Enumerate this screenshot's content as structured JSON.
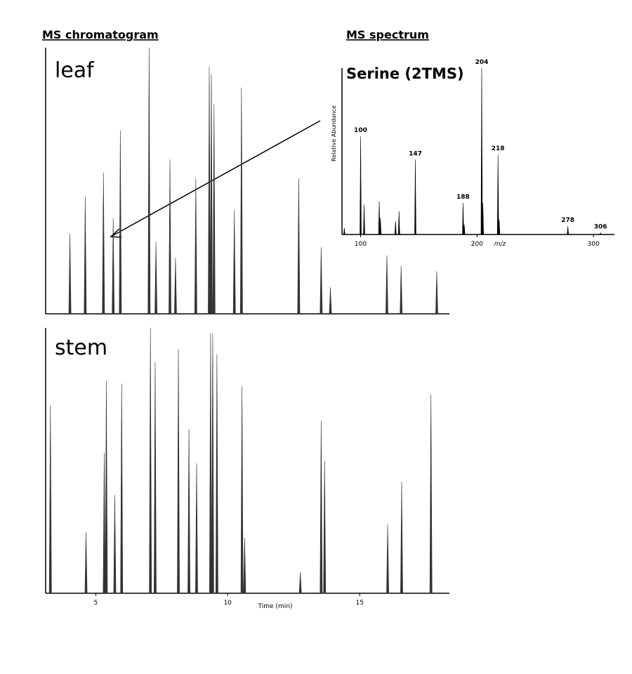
{
  "chart_data": [
    {
      "type": "stick",
      "title": "MS chromatogram",
      "label": "leaf",
      "x": [
        4.02,
        4.6,
        5.29,
        5.66,
        5.93,
        7.02,
        7.28,
        7.81,
        8.02,
        8.79,
        9.3,
        9.38,
        9.48,
        10.25,
        10.52,
        12.69,
        13.54,
        13.89,
        16.03,
        16.57,
        17.92
      ],
      "values": [
        30,
        44,
        53,
        36,
        69,
        100,
        27,
        58,
        21,
        51,
        93,
        90,
        79,
        39,
        85,
        51,
        25,
        10,
        22,
        18,
        16
      ],
      "xlim": [
        3.1,
        18.4
      ],
      "ylim": [
        0,
        100
      ],
      "color": "#333333"
    },
    {
      "type": "stick",
      "label": "stem",
      "xlabel": "Time (min)",
      "x": [
        3.28,
        4.63,
        5.32,
        5.4,
        5.72,
        5.98,
        7.07,
        7.25,
        8.13,
        8.53,
        8.82,
        9.35,
        9.43,
        9.59,
        10.54,
        10.64,
        12.75,
        13.54,
        13.67,
        16.06,
        16.59,
        17.7
      ],
      "values": [
        71,
        23,
        53,
        80,
        37,
        79,
        100,
        87,
        92,
        62,
        49,
        98,
        98,
        90,
        78,
        21,
        8,
        65,
        50,
        26,
        42,
        75
      ],
      "xlim": [
        3.1,
        18.4
      ],
      "ylim": [
        0,
        100
      ],
      "xticks": [
        5,
        10,
        15
      ],
      "color": "#333333"
    },
    {
      "type": "stick",
      "title": "MS spectrum",
      "subtitle": "Serine (2TMS)",
      "ylabel": "Relative Abundance",
      "xlabel": "m/z",
      "x": [
        86,
        100,
        103,
        116,
        117,
        130,
        133,
        147,
        188,
        189,
        204,
        205,
        218,
        219,
        278,
        306
      ],
      "values": [
        4,
        59,
        18,
        20,
        10,
        8,
        14,
        45,
        19,
        6,
        100,
        19,
        48,
        9,
        5,
        1
      ],
      "peak_labels": [
        100,
        147,
        188,
        204,
        218,
        278,
        306
      ],
      "xlim": [
        84,
        318
      ],
      "ylim": [
        0,
        100
      ],
      "xticks": [
        100,
        200,
        300
      ],
      "color": "#000000"
    }
  ]
}
